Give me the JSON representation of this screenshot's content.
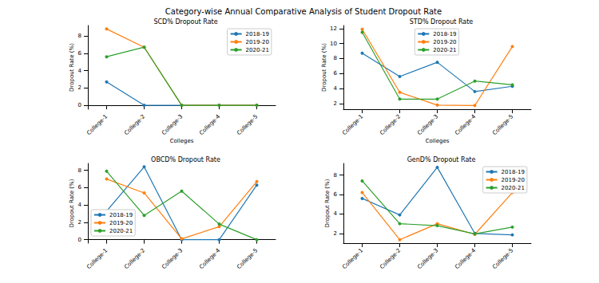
{
  "title": "Category-wise Annual Comparative Analysis of Student Dropout Rate",
  "chart_data": [
    {
      "type": "line",
      "title": "SCD% Dropout Rate",
      "x_label": "Colleges",
      "y_label": "Dropout Rate (%)",
      "categories": [
        "College-1",
        "College-2",
        "College-3",
        "College-4",
        "College-5"
      ],
      "series": [
        {
          "name": "2018-19",
          "color": "#1f77b4",
          "values": [
            2.7,
            0,
            0,
            0,
            0
          ]
        },
        {
          "name": "2019-20",
          "color": "#ff7f0e",
          "values": [
            8.8,
            6.7,
            0,
            0,
            0
          ]
        },
        {
          "name": "2020-21",
          "color": "#2ca02c",
          "values": [
            5.6,
            6.7,
            0,
            0,
            0
          ]
        }
      ],
      "ylim": [
        -0.45,
        9.2
      ],
      "yticks": [
        0,
        2,
        4,
        6,
        8
      ],
      "grid": false,
      "legend": "upper right",
      "marker": "circle"
    },
    {
      "type": "line",
      "title": "STD% Dropout Rate",
      "x_label": "Colleges",
      "y_label": "Dropout Rate (%)",
      "categories": [
        "College-1",
        "College-2",
        "College-3",
        "College-4",
        "College-5"
      ],
      "series": [
        {
          "name": "2018-19",
          "color": "#1f77b4",
          "values": [
            8.7,
            5.6,
            7.5,
            3.6,
            4.3
          ]
        },
        {
          "name": "2019-20",
          "color": "#ff7f0e",
          "values": [
            11.9,
            3.5,
            1.8,
            1.75,
            9.6
          ]
        },
        {
          "name": "2020-21",
          "color": "#2ca02c",
          "values": [
            11.5,
            2.6,
            2.6,
            5.0,
            4.5
          ]
        }
      ],
      "ylim": [
        1.25,
        12.4
      ],
      "yticks": [
        2,
        4,
        6,
        8,
        10,
        12
      ],
      "grid": false,
      "legend": "upper center",
      "marker": "circle"
    },
    {
      "type": "line",
      "title": "OBCD% Dropout Rate",
      "y_label": "Dropout Rate (%)",
      "categories": [
        "College-1",
        "College-2",
        "College-3",
        "College-4",
        "College-5"
      ],
      "series": [
        {
          "name": "2018-19",
          "color": "#1f77b4",
          "values": [
            3.3,
            8.4,
            0,
            0,
            6.3
          ]
        },
        {
          "name": "2019-20",
          "color": "#ff7f0e",
          "values": [
            7.0,
            5.4,
            0.1,
            1.5,
            6.7
          ]
        },
        {
          "name": "2020-21",
          "color": "#2ca02c",
          "values": [
            7.9,
            2.8,
            5.6,
            1.8,
            0
          ]
        }
      ],
      "ylim": [
        -0.4,
        8.8
      ],
      "yticks": [
        0,
        2,
        4,
        6,
        8
      ],
      "grid": false,
      "legend": "lower left",
      "marker": "circle"
    },
    {
      "type": "line",
      "title": "GenD% Dropout Rate",
      "y_label": "Dropout Rate (%)",
      "categories": [
        "College-1",
        "College-2",
        "College-3",
        "College-4",
        "College-5"
      ],
      "series": [
        {
          "name": "2018-19",
          "color": "#1f77b4",
          "values": [
            5.6,
            3.9,
            8.8,
            2.0,
            1.85
          ]
        },
        {
          "name": "2019-20",
          "color": "#ff7f0e",
          "values": [
            6.2,
            1.35,
            3.0,
            1.9,
            6.2
          ]
        },
        {
          "name": "2020-21",
          "color": "#2ca02c",
          "values": [
            7.4,
            3.0,
            2.8,
            1.95,
            2.65
          ]
        }
      ],
      "ylim": [
        1.0,
        9.2
      ],
      "yticks": [
        2,
        4,
        6,
        8
      ],
      "grid": false,
      "legend": "upper right",
      "marker": "circle"
    }
  ]
}
